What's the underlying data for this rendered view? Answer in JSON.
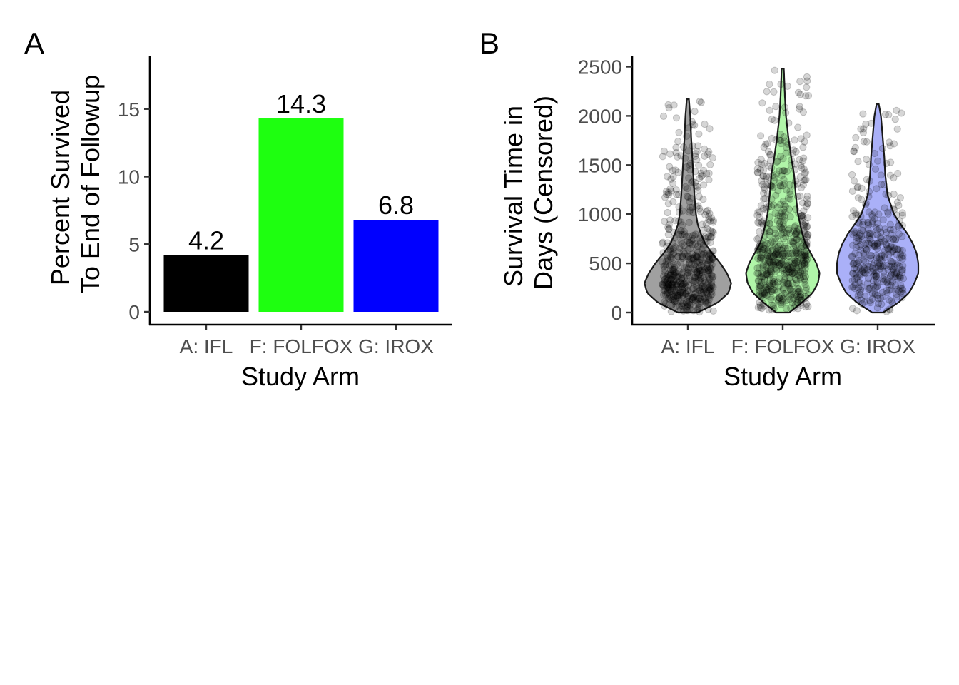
{
  "chart_data": [
    {
      "panel": "A",
      "type": "bar",
      "categories": [
        "A: IFL",
        "F: FOLFOX",
        "G: IROX"
      ],
      "values": [
        4.2,
        14.3,
        6.8
      ],
      "data_labels": [
        "4.2",
        "14.3",
        "6.8"
      ],
      "colors": [
        "#000000",
        "#1eff10",
        "#0000ff"
      ],
      "xlabel": "Study Arm",
      "ylabel_lines": [
        "Percent Survived",
        "To End of Followup"
      ],
      "yticks": [
        0,
        5,
        10,
        15
      ],
      "ylim": [
        0,
        18.8
      ],
      "grid": false
    },
    {
      "panel": "B",
      "type": "violin",
      "categories": [
        "A: IFL",
        "F: FOLFOX",
        "G: IROX"
      ],
      "colors": [
        "#a0a0a0",
        "#b0f5a8",
        "#aab0f8"
      ],
      "xlabel": "Study Arm",
      "ylabel_lines": [
        "Survival Time in",
        "Days (Censored)"
      ],
      "yticks": [
        0,
        500,
        1000,
        1500,
        2000,
        2500
      ],
      "ylim": [
        0,
        2590
      ],
      "grid": false,
      "series": [
        {
          "category": "A: IFL",
          "range": [
            0,
            2170
          ],
          "density_profile": [
            [
              0,
              0.18
            ],
            [
              100,
              0.55
            ],
            [
              200,
              0.75
            ],
            [
              300,
              0.8
            ],
            [
              400,
              0.72
            ],
            [
              500,
              0.6
            ],
            [
              600,
              0.45
            ],
            [
              700,
              0.32
            ],
            [
              800,
              0.24
            ],
            [
              900,
              0.18
            ],
            [
              1000,
              0.15
            ],
            [
              1200,
              0.12
            ],
            [
              1400,
              0.1
            ],
            [
              1600,
              0.08
            ],
            [
              1800,
              0.06
            ],
            [
              2000,
              0.045
            ],
            [
              2170,
              0.02
            ]
          ],
          "points_shown": 560
        },
        {
          "category": "F: FOLFOX",
          "range": [
            0,
            2480
          ],
          "density_profile": [
            [
              0,
              0.12
            ],
            [
              100,
              0.35
            ],
            [
              200,
              0.55
            ],
            [
              300,
              0.65
            ],
            [
              400,
              0.68
            ],
            [
              500,
              0.62
            ],
            [
              600,
              0.52
            ],
            [
              700,
              0.42
            ],
            [
              800,
              0.36
            ],
            [
              900,
              0.32
            ],
            [
              1000,
              0.28
            ],
            [
              1200,
              0.24
            ],
            [
              1400,
              0.21
            ],
            [
              1600,
              0.15
            ],
            [
              1800,
              0.1
            ],
            [
              2000,
              0.06
            ],
            [
              2200,
              0.04
            ],
            [
              2480,
              0.02
            ]
          ],
          "points_shown": 600
        },
        {
          "category": "G: IROX",
          "range": [
            0,
            2120
          ],
          "density_profile": [
            [
              0,
              0.1
            ],
            [
              100,
              0.38
            ],
            [
              200,
              0.58
            ],
            [
              300,
              0.68
            ],
            [
              400,
              0.75
            ],
            [
              500,
              0.75
            ],
            [
              600,
              0.72
            ],
            [
              700,
              0.65
            ],
            [
              800,
              0.55
            ],
            [
              900,
              0.42
            ],
            [
              1000,
              0.3
            ],
            [
              1200,
              0.18
            ],
            [
              1400,
              0.14
            ],
            [
              1600,
              0.12
            ],
            [
              1800,
              0.09
            ],
            [
              2000,
              0.06
            ],
            [
              2120,
              0.02
            ]
          ],
          "points_shown": 360
        }
      ]
    }
  ],
  "panel_labels": [
    "A",
    "B"
  ]
}
